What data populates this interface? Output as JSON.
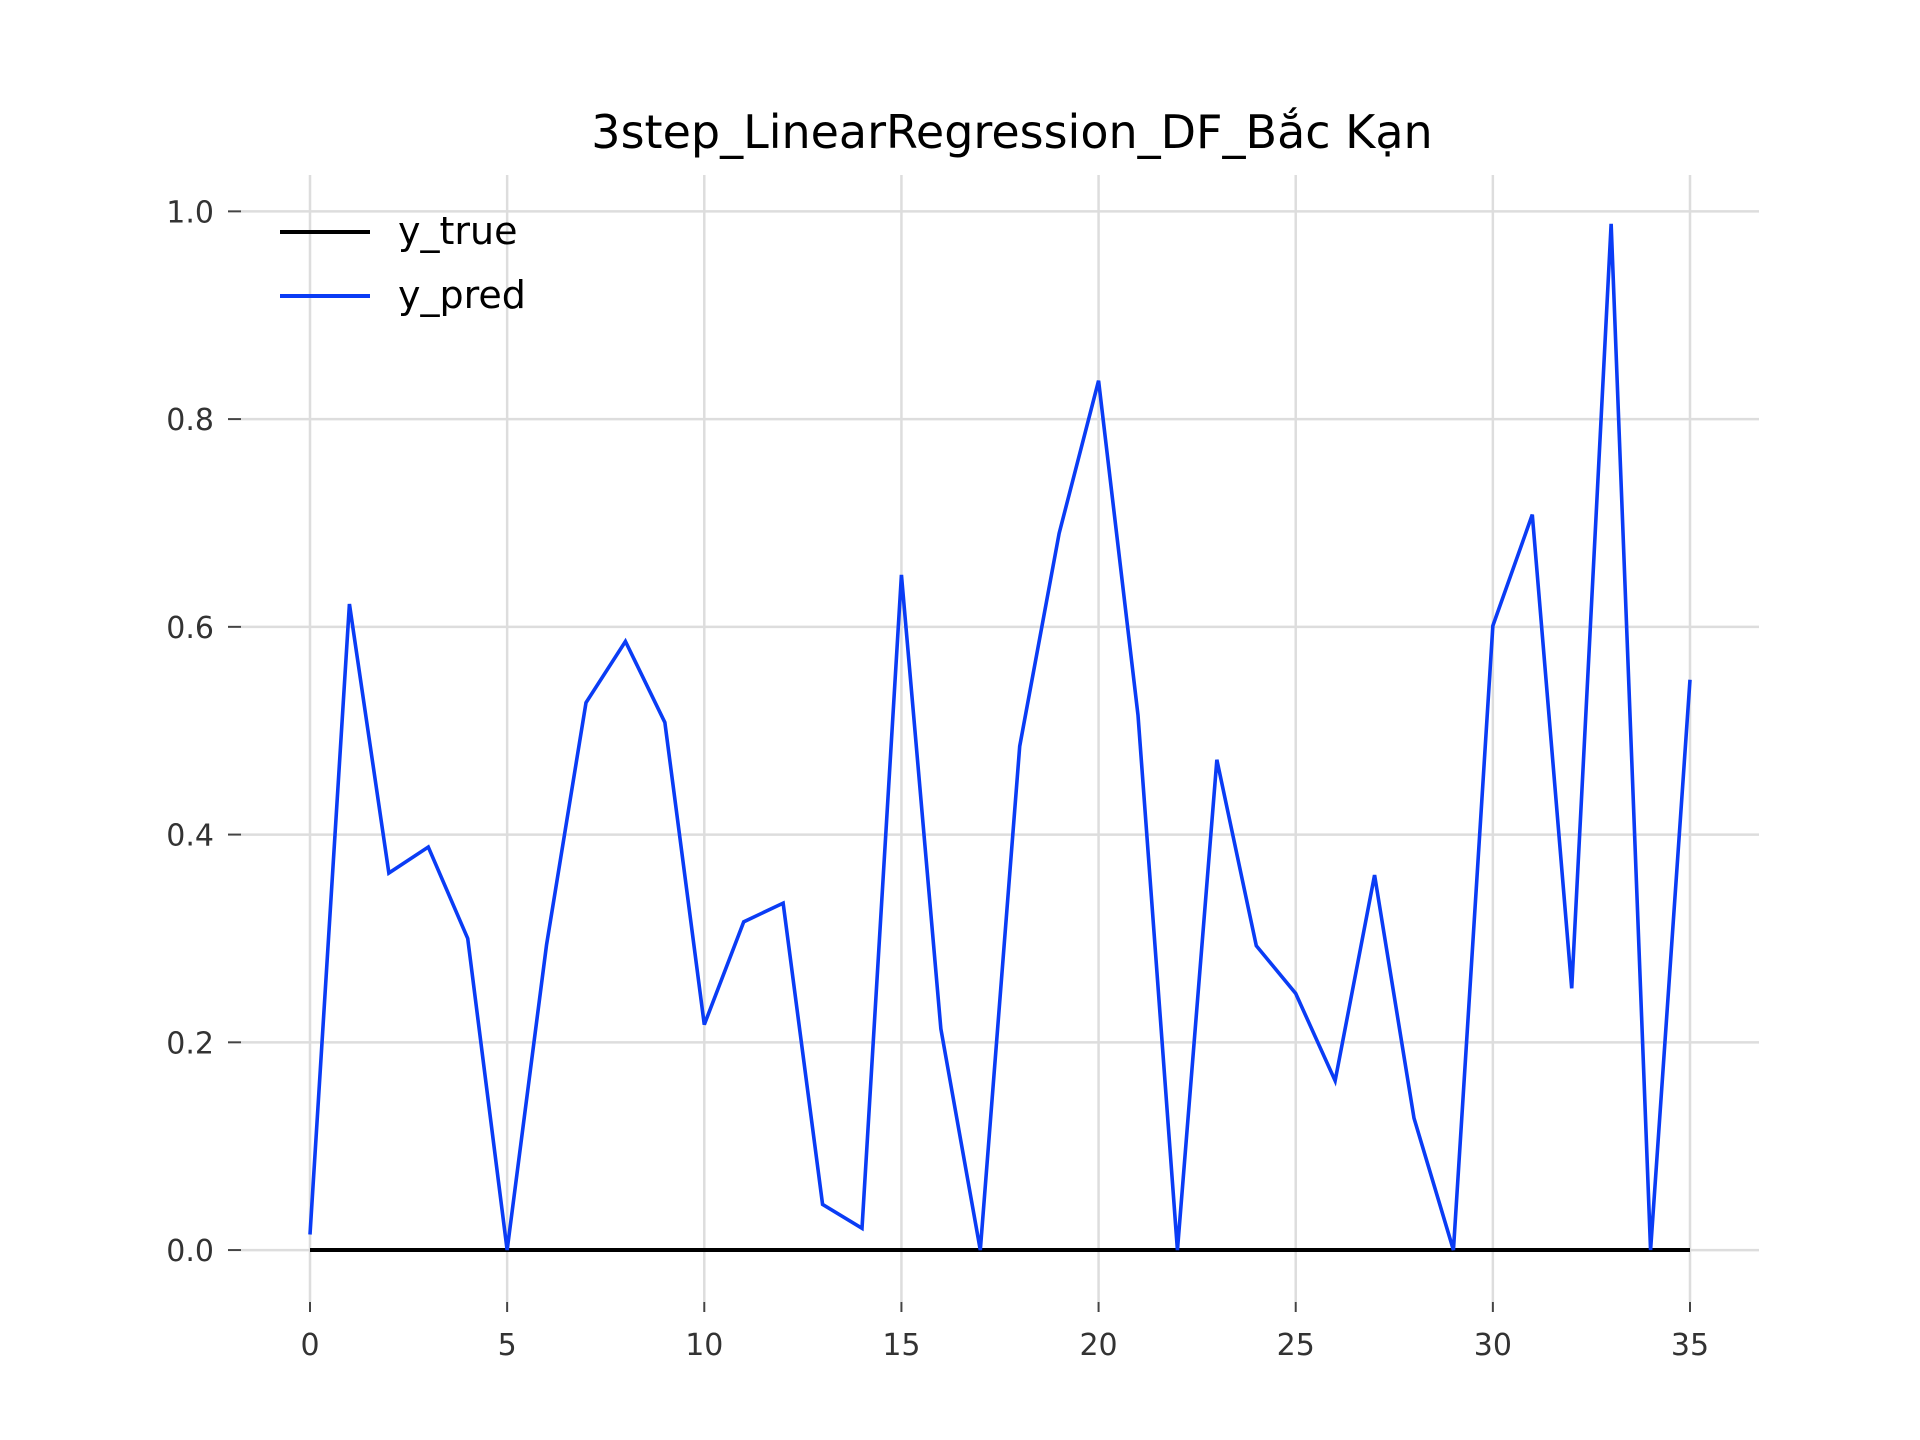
{
  "chart_data": {
    "type": "line",
    "title": "3step_LinearRegression_DF_Bắc Kạn",
    "xlabel": "",
    "ylabel": "",
    "xlim": [
      -1.75,
      36.75
    ],
    "ylim": [
      -0.05,
      1.035
    ],
    "x_ticks": [
      "0",
      "5",
      "10",
      "15",
      "20",
      "25",
      "30",
      "35"
    ],
    "y_ticks": [
      "0.0",
      "0.2",
      "0.4",
      "0.6",
      "0.8",
      "1.0"
    ],
    "grid": true,
    "legend_position": "top-left",
    "x": [
      0,
      1,
      2,
      3,
      4,
      5,
      6,
      7,
      8,
      9,
      10,
      11,
      12,
      13,
      14,
      15,
      16,
      17,
      18,
      19,
      20,
      21,
      22,
      23,
      24,
      25,
      26,
      27,
      28,
      29,
      30,
      31,
      32,
      33,
      34,
      35
    ],
    "series": [
      {
        "name": "y_true",
        "color": "#000000",
        "values": [
          0,
          0,
          0,
          0,
          0,
          0,
          0,
          0,
          0,
          0,
          0,
          0,
          0,
          0,
          0,
          0,
          0,
          0,
          0,
          0,
          0,
          0,
          0,
          0,
          0,
          0,
          0,
          0,
          0,
          0,
          0,
          0,
          0,
          0,
          0,
          0
        ]
      },
      {
        "name": "y_pred",
        "color": "#0a3cf5",
        "values": [
          0.015,
          0.622,
          0.363,
          0.388,
          0.3,
          0.0,
          0.294,
          0.527,
          0.586,
          0.508,
          0.217,
          0.316,
          0.334,
          0.044,
          0.021,
          0.65,
          0.213,
          0.0,
          0.485,
          0.69,
          0.837,
          0.515,
          0.0,
          0.472,
          0.293,
          0.247,
          0.163,
          0.361,
          0.127,
          0.0,
          0.601,
          0.708,
          0.252,
          0.988,
          0.0,
          0.549
        ]
      }
    ]
  }
}
